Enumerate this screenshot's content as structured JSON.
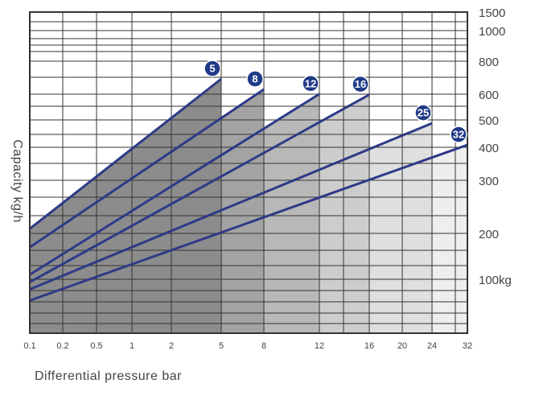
{
  "chart_data": {
    "type": "line",
    "xlabel": "Differential pressure bar",
    "ylabel": "Capacity kg/h",
    "x_ticks": [
      "0.1",
      "0.2",
      "0.5",
      "1",
      "2",
      "5",
      "8",
      "12",
      "16",
      "20",
      "24",
      "32"
    ],
    "y_ticks": [
      "1500",
      "1000",
      "800",
      "600",
      "500",
      "400",
      "300",
      "200",
      "100kg"
    ],
    "grid": true,
    "series": [
      {
        "name": "5",
        "x_end": "5",
        "y_start": 170,
        "y_end": 820
      },
      {
        "name": "8",
        "x_end": "8",
        "y_start": 140,
        "y_end": 735
      },
      {
        "name": "12",
        "x_end": "12",
        "y_start": 105,
        "y_end": 700
      },
      {
        "name": "16",
        "x_end": "16",
        "y_start": 97,
        "y_end": 695
      },
      {
        "name": "25",
        "x_end": "24",
        "y_start": 90,
        "y_end": 515
      },
      {
        "name": "32",
        "x_end": "32",
        "y_start": 80,
        "y_end": 410
      }
    ],
    "fills": [
      "#8c8c8c",
      "#a3a3a3",
      "#b8b8b8",
      "#cdcdcd",
      "#dfdfdf",
      "#eeeeee"
    ],
    "line_color": "#2e3a87",
    "badge_color": "#1f3a87",
    "grid_color": "#333333"
  }
}
